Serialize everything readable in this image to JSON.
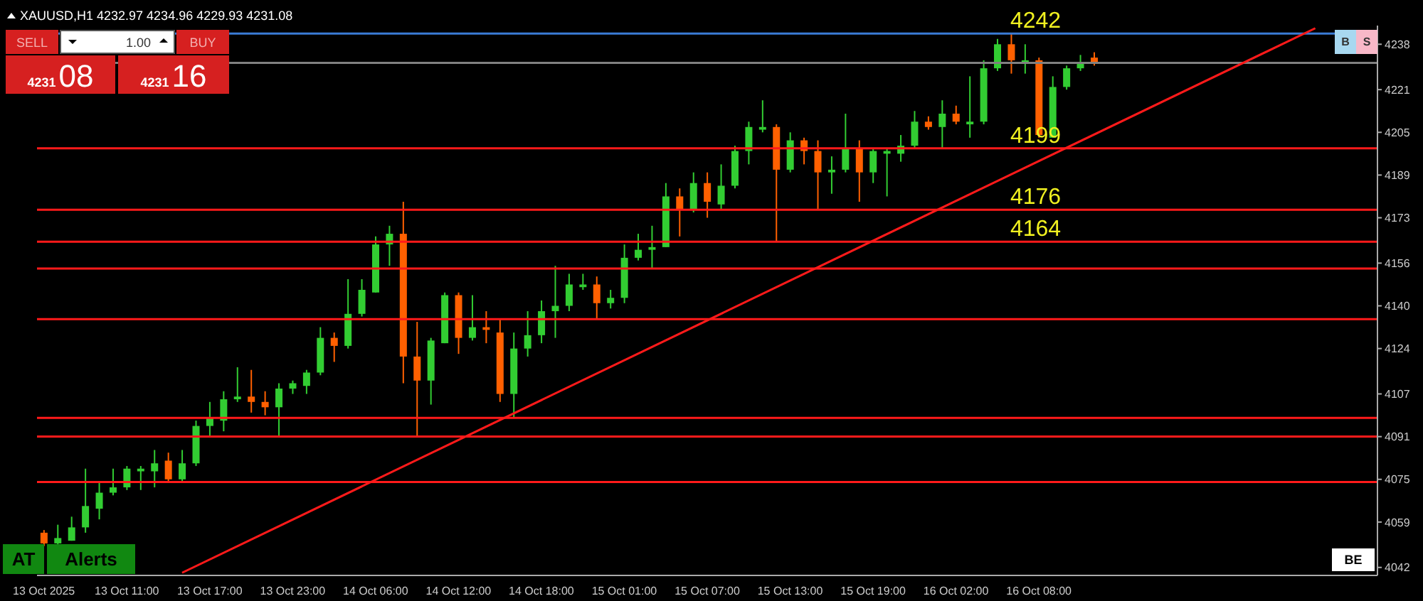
{
  "chart_data": {
    "type": "candlestick",
    "title": "XAUUSD,H1 4232.97 4234.96 4229.93 4231.08",
    "categories": [
      "13 Oct 2025",
      null,
      null,
      null,
      null,
      null,
      "13 Oct 11:00",
      null,
      null,
      null,
      null,
      null,
      "13 Oct 17:00",
      null,
      null,
      null,
      null,
      null,
      "13 Oct 23:00",
      null,
      null,
      null,
      null,
      null,
      "14 Oct 06:00",
      null,
      null,
      null,
      null,
      null,
      "14 Oct 12:00",
      null,
      null,
      null,
      null,
      null,
      "14 Oct 18:00",
      null,
      null,
      null,
      null,
      null,
      "15 Oct 01:00",
      null,
      null,
      null,
      null,
      null,
      "15 Oct 07:00",
      null,
      null,
      null,
      null,
      null,
      "15 Oct 13:00",
      null,
      null,
      null,
      null,
      null,
      "15 Oct 19:00",
      null,
      null,
      null,
      null,
      null,
      "16 Oct 02:00",
      null,
      null,
      null,
      null,
      null,
      "16 Oct 08:00",
      null,
      null,
      null,
      null,
      null,
      null,
      null,
      null,
      null,
      null,
      null,
      null,
      null,
      null,
      null,
      null,
      null,
      null,
      null,
      null,
      null,
      null,
      null,
      null
    ],
    "ohlc": [
      [
        4055,
        4056,
        4050,
        4051
      ],
      [
        4051,
        4058,
        4050,
        4053
      ],
      [
        4052,
        4061,
        4052,
        4057
      ],
      [
        4057,
        4079,
        4055,
        4065
      ],
      [
        4064,
        4074,
        4060,
        4070
      ],
      [
        4070,
        4079,
        4069,
        4072
      ],
      [
        4072,
        4080,
        4071,
        4079
      ],
      [
        4078,
        4080,
        4071,
        4079
      ],
      [
        4078,
        4086,
        4072,
        4081
      ],
      [
        4082,
        4085,
        4074,
        4075
      ],
      [
        4075,
        4086,
        4074,
        4081
      ],
      [
        4081,
        4097,
        4080,
        4095
      ],
      [
        4095,
        4104,
        4091,
        4098
      ],
      [
        4097,
        4108,
        4093,
        4105
      ],
      [
        4105,
        4117,
        4104,
        4106
      ],
      [
        4106,
        4116,
        4100,
        4104
      ],
      [
        4104,
        4108,
        4099,
        4102
      ],
      [
        4102,
        4111,
        4091,
        4109
      ],
      [
        4109,
        4112,
        4107,
        4111
      ],
      [
        4110,
        4116,
        4107,
        4115
      ],
      [
        4115,
        4132,
        4114,
        4128
      ],
      [
        4128,
        4130,
        4119,
        4125
      ],
      [
        4125,
        4150,
        4124,
        4137
      ],
      [
        4137,
        4150,
        4136,
        4146
      ],
      [
        4145,
        4166,
        4145,
        4163
      ],
      [
        4163,
        4170,
        4155,
        4167
      ],
      [
        4167,
        4179,
        4111,
        4121
      ],
      [
        4121,
        4134,
        4091,
        4112
      ],
      [
        4112,
        4128,
        4103,
        4127
      ],
      [
        4126,
        4145,
        4126,
        4144
      ],
      [
        4144,
        4145,
        4122,
        4128
      ],
      [
        4128,
        4144,
        4127,
        4132
      ],
      [
        4132,
        4138,
        4126,
        4131
      ],
      [
        4130,
        4135,
        4104,
        4107
      ],
      [
        4107,
        4130,
        4098,
        4124
      ],
      [
        4124,
        4138,
        4121,
        4129
      ],
      [
        4129,
        4142,
        4126,
        4138
      ],
      [
        4138,
        4155,
        4128,
        4140
      ],
      [
        4140,
        4152,
        4138,
        4148
      ],
      [
        4147,
        4152,
        4146,
        4148
      ],
      [
        4148,
        4151,
        4135,
        4141
      ],
      [
        4141,
        4146,
        4139,
        4143
      ],
      [
        4143,
        4163,
        4141,
        4158
      ],
      [
        4158,
        4167,
        4157,
        4161
      ],
      [
        4161,
        4170,
        4154,
        4162
      ],
      [
        4162,
        4186,
        4162,
        4181
      ],
      [
        4181,
        4184,
        4166,
        4176
      ],
      [
        4176,
        4190,
        4175,
        4186
      ],
      [
        4186,
        4190,
        4173,
        4179
      ],
      [
        4178,
        4193,
        4176,
        4185
      ],
      [
        4185,
        4200,
        4184,
        4198
      ],
      [
        4198,
        4209,
        4193,
        4207
      ],
      [
        4206,
        4217,
        4205,
        4207
      ],
      [
        4207,
        4208,
        4164,
        4191
      ],
      [
        4191,
        4205,
        4190,
        4202
      ],
      [
        4202,
        4203,
        4193,
        4198
      ],
      [
        4198,
        4202,
        4176,
        4190
      ],
      [
        4190,
        4196,
        4182,
        4191
      ],
      [
        4191,
        4212,
        4190,
        4199
      ],
      [
        4199,
        4202,
        4179,
        4190
      ],
      [
        4190,
        4199,
        4186,
        4198
      ],
      [
        4197,
        4199,
        4181,
        4198
      ],
      [
        4197,
        4204,
        4194,
        4200
      ],
      [
        4200,
        4213,
        4199,
        4209
      ],
      [
        4209,
        4211,
        4206,
        4207
      ],
      [
        4207,
        4217,
        4199,
        4212
      ],
      [
        4212,
        4215,
        4208,
        4209
      ],
      [
        4208,
        4226,
        4203,
        4209
      ],
      [
        4209,
        4232,
        4208,
        4229
      ],
      [
        4229,
        4240,
        4228,
        4238
      ],
      [
        4238,
        4242,
        4227,
        4232
      ],
      [
        4231,
        4238,
        4227,
        4232
      ],
      [
        4232,
        4233,
        4203,
        4204
      ],
      [
        4203,
        4226,
        4203,
        4222
      ],
      [
        4222,
        4230,
        4221,
        4229
      ],
      [
        4229,
        4234,
        4228,
        4231
      ],
      [
        4233,
        4235,
        4230,
        4231
      ],
      null,
      null,
      null,
      null,
      null,
      null,
      null,
      null,
      null,
      null,
      null,
      null,
      null,
      null,
      null,
      null,
      null,
      null,
      null,
      null
    ],
    "colors": [
      "#ff6000",
      "#32cd32",
      "#32cd32",
      "#32cd32",
      "#32cd32",
      "#32cd32",
      "#32cd32",
      "#32cd32",
      "#32cd32",
      "#ff6000",
      "#32cd32",
      "#32cd32",
      "#32cd32",
      "#32cd32",
      "#32cd32",
      "#ff6000",
      "#ff6000",
      "#32cd32",
      "#32cd32",
      "#32cd32",
      "#32cd32",
      "#ff6000",
      "#32cd32",
      "#32cd32",
      "#32cd32",
      "#32cd32",
      "#ff6000",
      "#ff6000",
      "#32cd32",
      "#32cd32",
      "#ff6000",
      "#32cd32",
      "#ff6000",
      "#ff6000",
      "#32cd32",
      "#32cd32",
      "#32cd32",
      "#32cd32",
      "#32cd32",
      "#32cd32",
      "#ff6000",
      "#32cd32",
      "#32cd32",
      "#32cd32",
      "#32cd32",
      "#32cd32",
      "#ff6000",
      "#32cd32",
      "#ff6000",
      "#32cd32",
      "#32cd32",
      "#32cd32",
      "#32cd32",
      "#ff6000",
      "#32cd32",
      "#ff6000",
      "#ff6000",
      "#32cd32",
      "#32cd32",
      "#ff6000",
      "#32cd32",
      "#32cd32",
      "#32cd32",
      "#32cd32",
      "#ff6000",
      "#32cd32",
      "#ff6000",
      "#32cd32",
      "#32cd32",
      "#32cd32",
      "#ff6000",
      "#32cd32",
      "#ff6000",
      "#32cd32",
      "#32cd32",
      "#32cd32",
      "#ff6000",
      null,
      null,
      null,
      null,
      null,
      null,
      null,
      null,
      null,
      null,
      null,
      null,
      null,
      null,
      null,
      null,
      null,
      null,
      null,
      null
    ],
    "series": [
      {
        "type": "line",
        "color": "#ff1a1a",
        "values": [
          null,
          null,
          null,
          null,
          null,
          null,
          null,
          null,
          null,
          null,
          4040,
          null,
          null,
          null,
          null,
          null,
          null,
          null,
          null,
          null,
          null,
          null,
          null,
          null,
          null,
          null,
          null,
          null,
          null,
          null,
          null,
          null,
          null,
          null,
          null,
          null,
          null,
          null,
          null,
          null,
          null,
          null,
          null,
          null,
          null,
          null,
          null,
          null,
          null,
          null,
          null,
          null,
          null,
          null,
          null,
          null,
          null,
          null,
          null,
          null,
          null,
          null,
          null,
          null,
          null,
          null,
          null,
          null,
          null,
          null,
          null,
          null,
          null,
          null,
          null,
          null,
          null,
          null,
          null,
          null,
          null,
          null,
          null,
          null,
          null,
          null,
          null,
          null,
          null,
          null,
          null,
          null,
          4244,
          null,
          null,
          null,
          null
        ]
      }
    ],
    "ylim": [
      4039,
      4245
    ],
    "yticks": [
      4238,
      4221,
      4205,
      4189,
      4173,
      4156,
      4140,
      4124,
      4107,
      4091,
      4075,
      4059,
      4042
    ],
    "ref_lines": [
      {
        "axis": "y",
        "value": 4242,
        "label": "4242",
        "color": "#3a7bd5"
      },
      {
        "axis": "y",
        "value": 4231,
        "color": "#808080"
      },
      {
        "axis": "y",
        "value": 4199,
        "label": "4199",
        "color": "#ff1a1a"
      },
      {
        "axis": "y",
        "value": 4176,
        "label": "4176",
        "color": "#ff1a1a"
      },
      {
        "axis": "y",
        "value": 4164,
        "label": "4164",
        "color": "#ff1a1a"
      },
      {
        "axis": "y",
        "value": 4154,
        "color": "#ff1a1a"
      },
      {
        "axis": "y",
        "value": 4135,
        "color": "#ff1a1a"
      },
      {
        "axis": "y",
        "value": 4098,
        "color": "#ff1a1a"
      },
      {
        "axis": "y",
        "value": 4091,
        "color": "#ff1a1a"
      },
      {
        "axis": "y",
        "value": 4074,
        "color": "#ff1a1a"
      }
    ],
    "annotations": [
      "SELL",
      "1.00",
      "BUY",
      "4231",
      "08",
      "4231",
      "16",
      "AT",
      "Alerts",
      "B",
      "S",
      "BE"
    ]
  }
}
